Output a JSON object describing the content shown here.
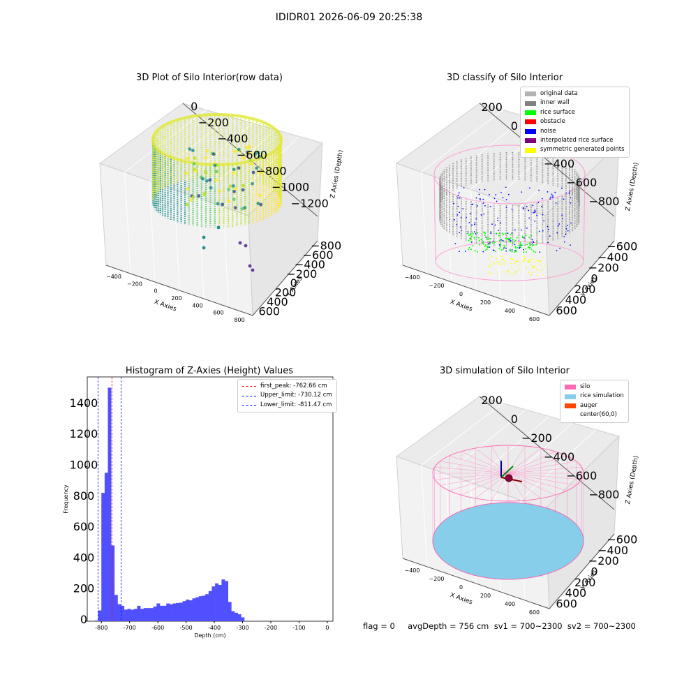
{
  "figure": {
    "suptitle": "IDIDR01 2026-06-09 20:25:38",
    "footer": "flag = 0     avgDepth = 756 cm  sv1 = 700~2300  sv2 = 700~2300"
  },
  "chart_data": [
    {
      "type": "scatter",
      "title": "3D Plot of Silo Interior(row data)",
      "xlabel": "X Axies",
      "ylabel": "Y Axies",
      "zlabel": "Z Axies (Depth)",
      "x_ticks": [
        "−400",
        "−200",
        "0",
        "200",
        "400",
        "600",
        "800"
      ],
      "y_ticks": [
        "−800",
        "−600",
        "−400",
        "−200",
        "0",
        "200",
        "400",
        "600"
      ],
      "z_ticks": [
        "0",
        "−200",
        "−400",
        "−600",
        "−800",
        "−1000",
        "−1200"
      ],
      "colormap": "viridis",
      "grid": true
    },
    {
      "type": "scatter",
      "title": "3D classify of Silo Interior",
      "xlabel": "X Axies",
      "ylabel": "Y Axies",
      "zlabel": "Z Axies (Depth)",
      "x_ticks": [
        "−400",
        "−200",
        "0",
        "200",
        "400",
        "600"
      ],
      "y_ticks": [
        "−600",
        "−400",
        "−200",
        "0",
        "200",
        "400",
        "600"
      ],
      "z_ticks": [
        "200",
        "0",
        "−200",
        "−400",
        "−600",
        "−800"
      ],
      "legend_placement": "top-right",
      "legend": [
        {
          "label": "original data",
          "color": "#b3b3b3"
        },
        {
          "label": "inner wall",
          "color": "#808080"
        },
        {
          "label": "rice surface",
          "color": "#00ff00"
        },
        {
          "label": "obstacle",
          "color": "#ff0000"
        },
        {
          "label": "noise",
          "color": "#0000ff"
        },
        {
          "label": "interpolated rice surface",
          "color": "#800080"
        },
        {
          "label": "symmetric generated points",
          "color": "#ffff00"
        }
      ],
      "grid": true
    },
    {
      "type": "bar",
      "title": "Histogram of Z-Axies (Height) Values",
      "xlabel": "Depth (cm)",
      "ylabel": "Frequency",
      "xlim": [
        -850,
        20
      ],
      "ylim": [
        0,
        1580
      ],
      "x_ticks": [
        -800,
        -700,
        -600,
        -500,
        -400,
        -300,
        -200,
        -100,
        0
      ],
      "y_ticks": [
        0,
        200,
        400,
        600,
        800,
        1000,
        1200,
        1400
      ],
      "bar_color": "#5050ff",
      "bins_start": -823,
      "bin_width": 11.5,
      "values": [
        5,
        70,
        830,
        960,
        1510,
        490,
        170,
        110,
        100,
        75,
        80,
        75,
        80,
        100,
        80,
        85,
        85,
        85,
        95,
        115,
        100,
        100,
        115,
        110,
        115,
        118,
        120,
        130,
        140,
        135,
        148,
        155,
        162,
        165,
        175,
        195,
        225,
        245,
        235,
        270,
        260,
        125,
        65,
        55,
        45,
        25
      ],
      "vlines": [
        {
          "x": -762.66,
          "color": "#ff0000",
          "label": "first_peak: -762.66 cm"
        },
        {
          "x": -730.12,
          "color": "#0000ff",
          "label": "Upper_limit: -730.12 cm"
        },
        {
          "x": -811.47,
          "color": "#0000ff",
          "label": "Lower_limit: -811.47 cm"
        }
      ],
      "legend_placement": "top-right"
    },
    {
      "type": "scatter",
      "title": "3D simulation of Silo Interior",
      "xlabel": "X Axies",
      "ylabel": "Y Axies",
      "zlabel": "Z Axies (Depth)",
      "x_ticks": [
        "−400",
        "−200",
        "0",
        "200",
        "400",
        "600"
      ],
      "y_ticks": [
        "−600",
        "−400",
        "−200",
        "0",
        "200",
        "400",
        "600"
      ],
      "z_ticks": [
        "200",
        "0",
        "−200",
        "−400",
        "−600",
        "−800"
      ],
      "legend_placement": "top-right",
      "legend": [
        {
          "label": "silo",
          "color": "#ff69b4"
        },
        {
          "label": "rice simulation",
          "color": "#87ceeb"
        },
        {
          "label": "auger",
          "color": "#ff4500"
        },
        {
          "label": "center(60,0)",
          "color": "#ffffff"
        }
      ],
      "grid": true
    }
  ]
}
